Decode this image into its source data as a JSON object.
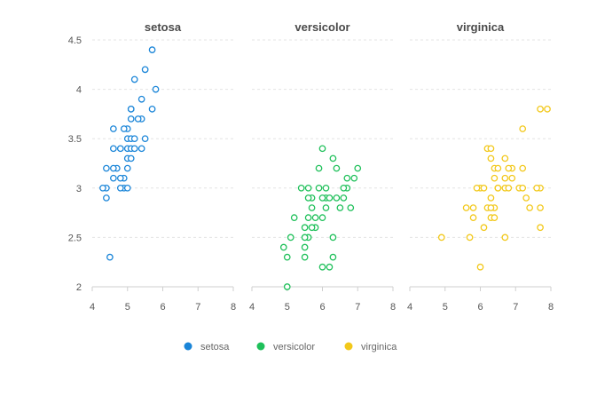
{
  "chart_data": {
    "type": "scatter",
    "facet_by": "species",
    "x_ticks": [
      4,
      5,
      6,
      7,
      8
    ],
    "y_ticks": [
      2,
      2.5,
      3,
      3.5,
      4,
      4.5
    ],
    "xlim": [
      4,
      8
    ],
    "ylim": [
      2,
      4.5
    ],
    "grid": "horizontal dashed",
    "legend_position": "bottom",
    "legend": [
      "setosa",
      "versicolor",
      "virginica"
    ],
    "colors": {
      "setosa": "#1a85d8",
      "versicolor": "#1fc05a",
      "virginica": "#f2c81a"
    },
    "panels": [
      {
        "title": "setosa",
        "series": "setosa",
        "points": [
          [
            5.7,
            4.4
          ],
          [
            5.8,
            4.0
          ],
          [
            5.5,
            4.2
          ],
          [
            5.2,
            4.1
          ],
          [
            5.4,
            3.9
          ],
          [
            5.1,
            3.8
          ],
          [
            5.1,
            3.8
          ],
          [
            5.7,
            3.8
          ],
          [
            5.0,
            3.6
          ],
          [
            4.6,
            3.6
          ],
          [
            4.9,
            3.6
          ],
          [
            5.1,
            3.7
          ],
          [
            5.4,
            3.7
          ],
          [
            5.3,
            3.7
          ],
          [
            5.0,
            3.5
          ],
          [
            5.1,
            3.5
          ],
          [
            5.2,
            3.5
          ],
          [
            5.5,
            3.5
          ],
          [
            4.6,
            3.4
          ],
          [
            4.8,
            3.4
          ],
          [
            5.0,
            3.4
          ],
          [
            5.1,
            3.4
          ],
          [
            5.4,
            3.4
          ],
          [
            5.2,
            3.4
          ],
          [
            4.7,
            3.2
          ],
          [
            4.4,
            3.2
          ],
          [
            4.6,
            3.2
          ],
          [
            5.0,
            3.3
          ],
          [
            5.1,
            3.3
          ],
          [
            4.9,
            3.1
          ],
          [
            4.8,
            3.1
          ],
          [
            4.6,
            3.1
          ],
          [
            5.0,
            3.2
          ],
          [
            4.9,
            3.0
          ],
          [
            4.8,
            3.0
          ],
          [
            4.4,
            3.0
          ],
          [
            4.3,
            3.0
          ],
          [
            5.0,
            3.0
          ],
          [
            4.4,
            2.9
          ],
          [
            4.5,
            2.3
          ]
        ]
      },
      {
        "title": "versicolor",
        "series": "versicolor",
        "points": [
          [
            6.0,
            3.4
          ],
          [
            6.3,
            3.3
          ],
          [
            6.4,
            3.2
          ],
          [
            5.9,
            3.2
          ],
          [
            7.0,
            3.2
          ],
          [
            6.6,
            2.9
          ],
          [
            6.7,
            3.1
          ],
          [
            6.9,
            3.1
          ],
          [
            6.7,
            3.0
          ],
          [
            6.1,
            3.0
          ],
          [
            5.9,
            3.0
          ],
          [
            5.6,
            3.0
          ],
          [
            5.4,
            3.0
          ],
          [
            6.1,
            2.9
          ],
          [
            6.6,
            3.0
          ],
          [
            6.2,
            2.9
          ],
          [
            5.7,
            2.9
          ],
          [
            5.6,
            2.9
          ],
          [
            6.0,
            2.9
          ],
          [
            6.4,
            2.9
          ],
          [
            6.1,
            2.8
          ],
          [
            6.8,
            2.8
          ],
          [
            6.5,
            2.8
          ],
          [
            5.7,
            2.8
          ],
          [
            5.8,
            2.7
          ],
          [
            5.6,
            2.7
          ],
          [
            5.2,
            2.7
          ],
          [
            6.0,
            2.7
          ],
          [
            5.6,
            2.5
          ],
          [
            5.5,
            2.6
          ],
          [
            5.8,
            2.6
          ],
          [
            5.7,
            2.6
          ],
          [
            5.5,
            2.5
          ],
          [
            6.3,
            2.5
          ],
          [
            5.1,
            2.5
          ],
          [
            5.5,
            2.4
          ],
          [
            4.9,
            2.4
          ],
          [
            5.0,
            2.3
          ],
          [
            6.3,
            2.3
          ],
          [
            6.0,
            2.2
          ],
          [
            6.2,
            2.2
          ],
          [
            5.0,
            2.0
          ],
          [
            5.5,
            2.3
          ]
        ]
      },
      {
        "title": "virginica",
        "series": "virginica",
        "points": [
          [
            7.7,
            3.8
          ],
          [
            7.9,
            3.8
          ],
          [
            7.2,
            3.6
          ],
          [
            6.2,
            3.4
          ],
          [
            6.3,
            3.4
          ],
          [
            6.4,
            3.2
          ],
          [
            6.5,
            3.2
          ],
          [
            6.9,
            3.2
          ],
          [
            7.2,
            3.2
          ],
          [
            6.7,
            3.3
          ],
          [
            6.3,
            3.3
          ],
          [
            6.4,
            3.1
          ],
          [
            6.9,
            3.1
          ],
          [
            6.7,
            3.1
          ],
          [
            7.1,
            3.0
          ],
          [
            6.5,
            3.0
          ],
          [
            6.7,
            3.0
          ],
          [
            7.7,
            3.0
          ],
          [
            7.2,
            3.0
          ],
          [
            6.0,
            3.0
          ],
          [
            6.1,
            3.0
          ],
          [
            5.9,
            3.0
          ],
          [
            7.6,
            3.0
          ],
          [
            6.8,
            3.2
          ],
          [
            6.8,
            3.0
          ],
          [
            6.5,
            3.0
          ],
          [
            6.3,
            2.9
          ],
          [
            7.3,
            2.9
          ],
          [
            6.4,
            2.8
          ],
          [
            6.2,
            2.8
          ],
          [
            7.4,
            2.8
          ],
          [
            7.7,
            2.8
          ],
          [
            6.3,
            2.8
          ],
          [
            5.6,
            2.8
          ],
          [
            5.8,
            2.8
          ],
          [
            6.3,
            2.7
          ],
          [
            6.4,
            2.7
          ],
          [
            5.8,
            2.7
          ],
          [
            6.1,
            2.6
          ],
          [
            7.7,
            2.6
          ],
          [
            6.7,
            2.5
          ],
          [
            5.7,
            2.5
          ],
          [
            4.9,
            2.5
          ],
          [
            6.0,
            2.2
          ],
          [
            6.5,
            3.0
          ]
        ]
      }
    ]
  }
}
